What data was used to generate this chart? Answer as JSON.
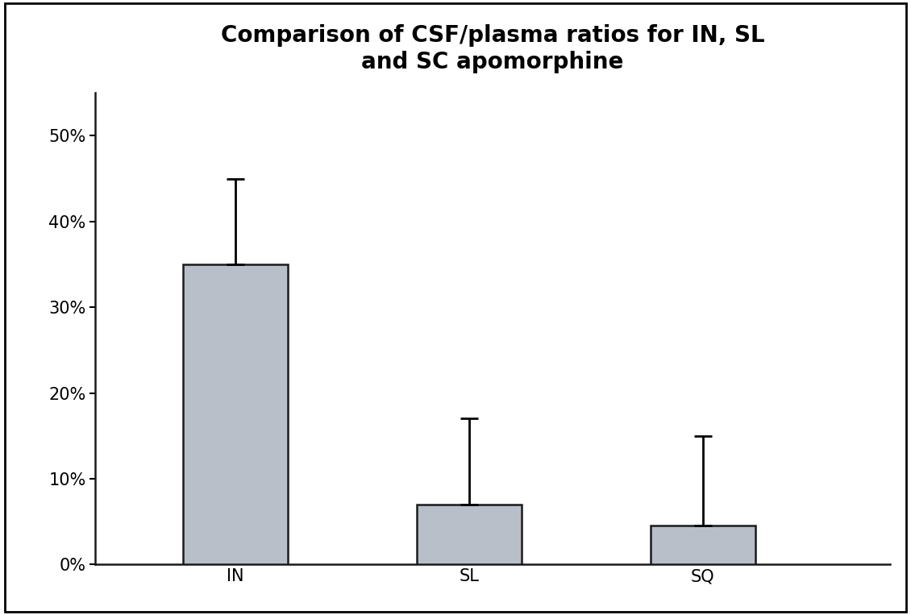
{
  "title": "Comparison of CSF/plasma ratios for IN, SL\nand SC apomorphine",
  "categories": [
    "IN",
    "SL",
    "SQ"
  ],
  "values": [
    0.35,
    0.07,
    0.045
  ],
  "errors_upper": [
    0.1,
    0.1,
    0.105
  ],
  "errors_lower": [
    0.0,
    0.0,
    0.0
  ],
  "bar_color": "#b8bfc9",
  "bar_edgecolor": "#1a1a1a",
  "bar_edgewidth": 1.8,
  "ylim": [
    0,
    0.55
  ],
  "yticks": [
    0.0,
    0.1,
    0.2,
    0.3,
    0.4,
    0.5
  ],
  "ytick_labels": [
    "0%",
    "10%",
    "20%",
    "30%",
    "40%",
    "50%"
  ],
  "title_fontsize": 20,
  "tick_fontsize": 15,
  "background_color": "#ffffff",
  "figure_facecolor": "#ffffff",
  "bar_width": 0.45,
  "x_positions": [
    1,
    2,
    3
  ],
  "xlim": [
    0.4,
    3.8
  ],
  "capsize": 8,
  "elinewidth": 2.0,
  "capthick": 2.0,
  "border_linewidth": 2.0
}
